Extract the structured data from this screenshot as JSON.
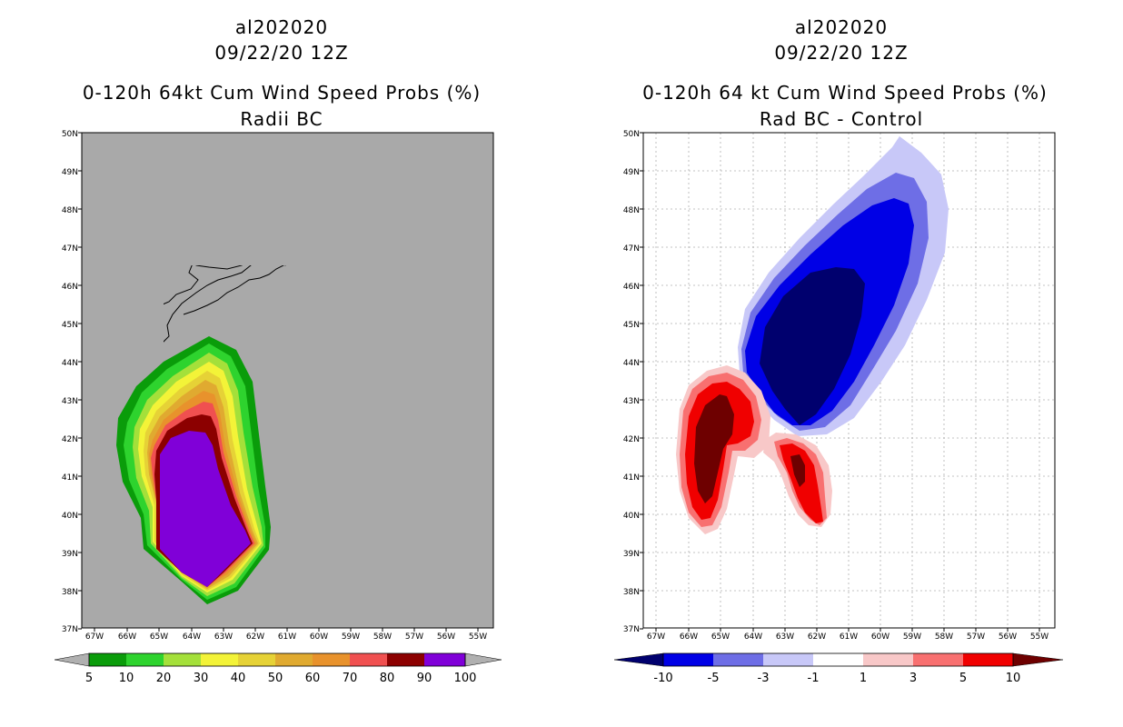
{
  "left": {
    "title_line1": "al202020",
    "title_line2": "09/22/20 12Z",
    "title_line3": "0-120h 64kt Cum Wind Speed Probs (%)",
    "title_line4": "Radii BC",
    "colorbar_labels": [
      "5",
      "10",
      "20",
      "30",
      "40",
      "50",
      "60",
      "70",
      "80",
      "90",
      "100"
    ],
    "colors": {
      "background": "#a9a9a9",
      "c5": "#0a9c0a",
      "c10": "#2ed32e",
      "c20": "#a4e03a",
      "c30": "#f3f338",
      "c40": "#e6d236",
      "c50": "#e0aa30",
      "c60": "#e8922c",
      "c70": "#f05050",
      "c80": "#8c0000",
      "c90": "#8000d8",
      "c100": "#b0b0b0"
    }
  },
  "right": {
    "title_line1": "al202020",
    "title_line2": "09/22/20 12Z",
    "title_line3": "0-120h 64 kt Cum Wind Speed Probs (%)",
    "title_line4": "Rad BC - Control",
    "colorbar_labels": [
      "-10",
      "-5",
      "-3",
      "-1",
      "1",
      "3",
      "5",
      "10"
    ],
    "colors": {
      "neg10": "#00006e",
      "neg5": "#0000e6",
      "neg3": "#6e6ee6",
      "neg1": "#c8c8f8",
      "pos1": "#f8c8c8",
      "pos3": "#f87070",
      "pos5": "#f00000",
      "pos10": "#6e0000"
    }
  },
  "map": {
    "lat_labels": [
      "50N",
      "49N",
      "48N",
      "47N",
      "46N",
      "45N",
      "44N",
      "43N",
      "42N",
      "41N",
      "40N",
      "39N",
      "38N",
      "37N"
    ],
    "lon_labels": [
      "67W",
      "66W",
      "65W",
      "64W",
      "63W",
      "62W",
      "61W",
      "60W",
      "59W",
      "58W",
      "57W",
      "56W",
      "55W"
    ]
  }
}
